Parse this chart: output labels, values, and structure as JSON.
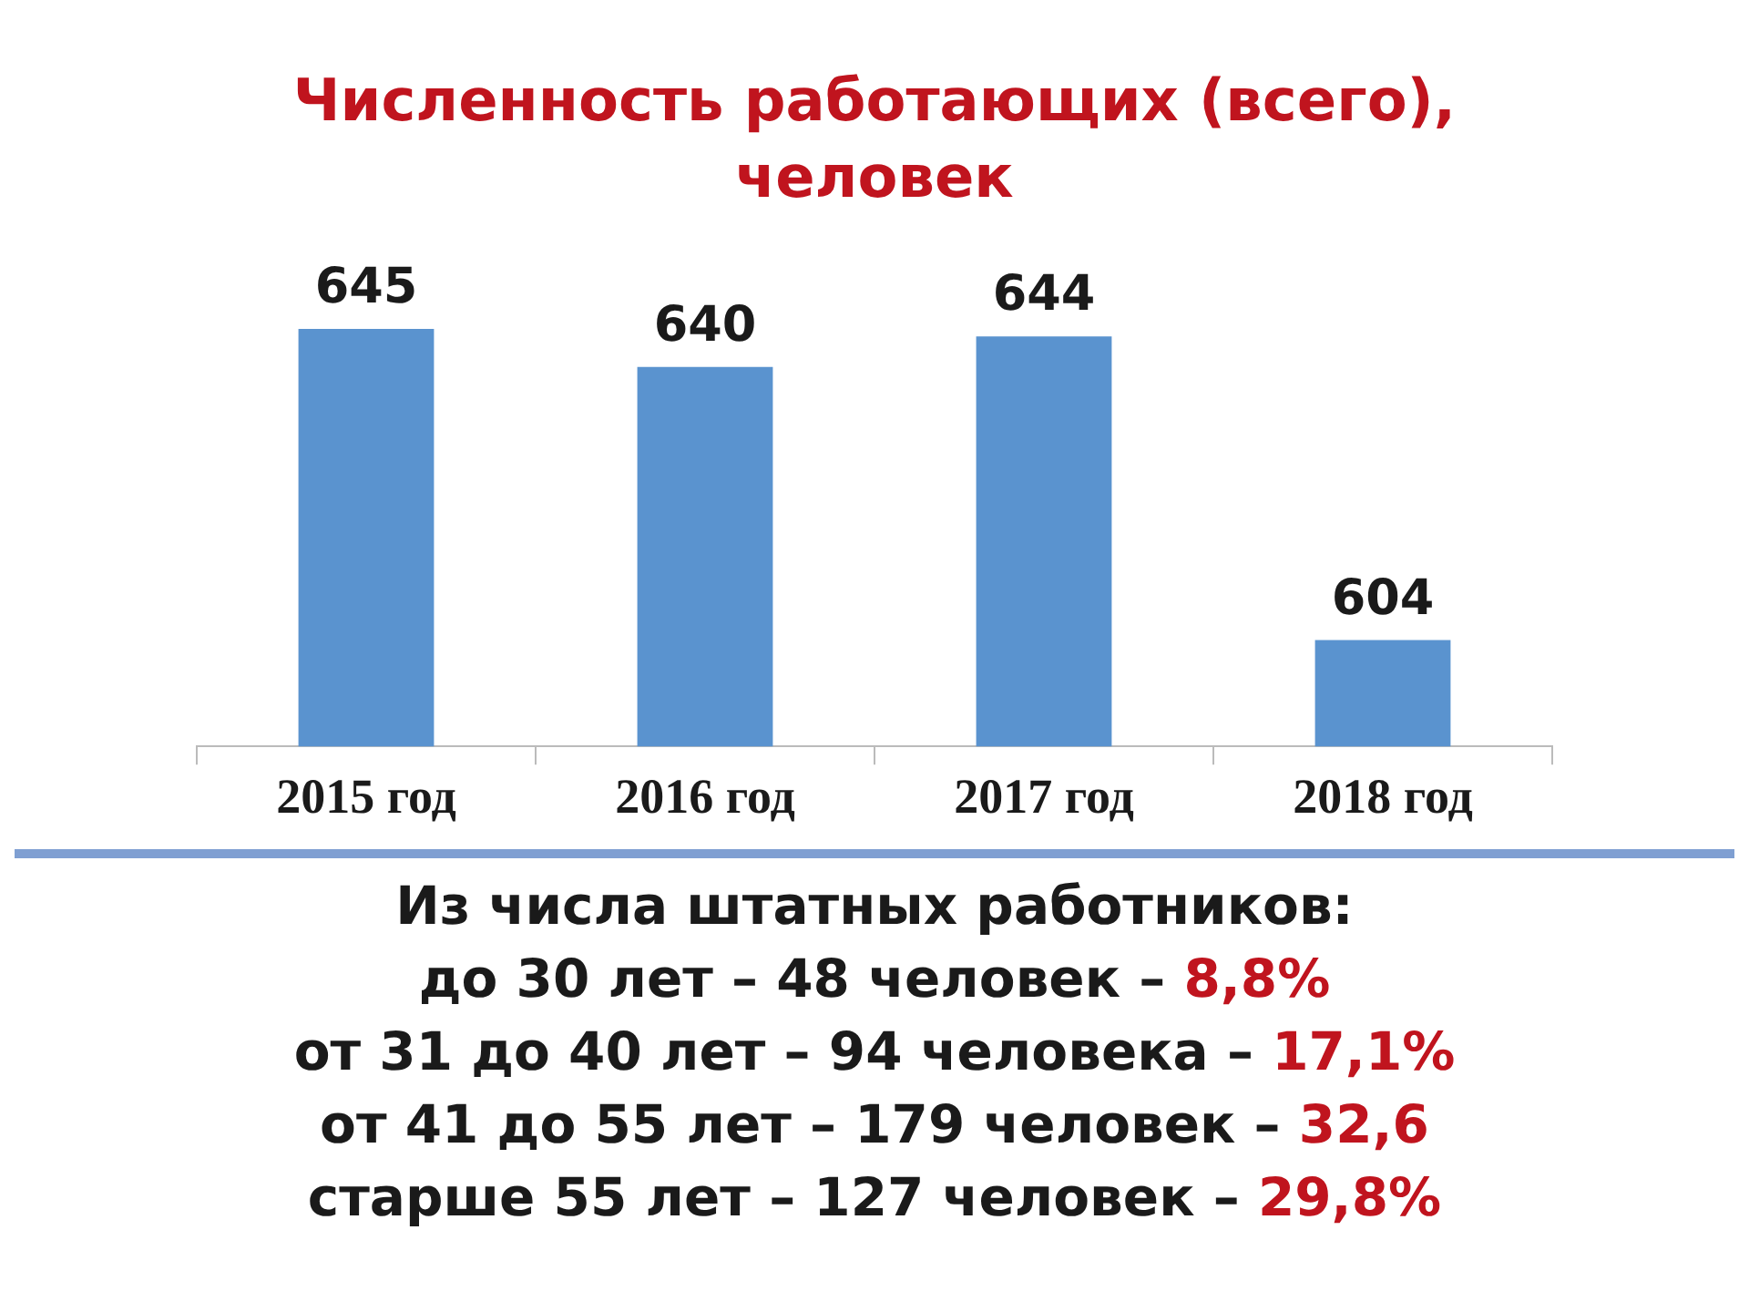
{
  "chart_data": {
    "type": "bar",
    "title": "Численность работающих (всего),\nчеловек",
    "categories": [
      "2015 год",
      "2016 год",
      "2017 год",
      "2018 год"
    ],
    "values": [
      645,
      640,
      644,
      604
    ],
    "color": "#5a93cf",
    "tick_labels": "x",
    "grid": false,
    "legend": false,
    "data_labels": true,
    "annotations": [
      "Из числа штатных работников:",
      "до 30 лет – 48 человек – 8,8%",
      "от 31 до 40 лет – 94 человека – 17,1%",
      "от 41 до 55 лет – 179 человек – 32,6",
      "старше 55 лет – 127 человек – 29,8%"
    ]
  }
}
